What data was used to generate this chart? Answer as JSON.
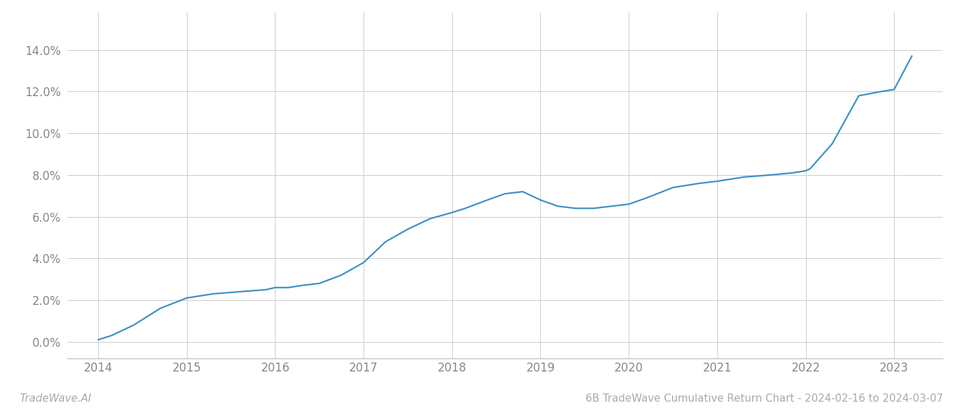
{
  "title": "6B TradeWave Cumulative Return Chart - 2024-02-16 to 2024-03-07",
  "watermark": "TradeWave.AI",
  "line_color": "#3d8fc4",
  "background_color": "#ffffff",
  "grid_color": "#cccccc",
  "x_values": [
    2014.0,
    2014.15,
    2014.4,
    2014.7,
    2015.0,
    2015.15,
    2015.3,
    2015.6,
    2015.9,
    2016.0,
    2016.15,
    2016.3,
    2016.5,
    2016.75,
    2017.0,
    2017.25,
    2017.5,
    2017.75,
    2018.0,
    2018.15,
    2018.4,
    2018.6,
    2018.8,
    2019.0,
    2019.2,
    2019.4,
    2019.6,
    2019.8,
    2020.0,
    2020.2,
    2020.5,
    2020.8,
    2021.0,
    2021.3,
    2021.6,
    2021.85,
    2022.0,
    2022.05,
    2022.3,
    2022.6,
    2022.85,
    2023.0,
    2023.2
  ],
  "y_values": [
    0.001,
    0.003,
    0.008,
    0.016,
    0.021,
    0.022,
    0.023,
    0.024,
    0.025,
    0.026,
    0.026,
    0.027,
    0.028,
    0.032,
    0.038,
    0.048,
    0.054,
    0.059,
    0.062,
    0.064,
    0.068,
    0.071,
    0.072,
    0.068,
    0.065,
    0.064,
    0.064,
    0.065,
    0.066,
    0.069,
    0.074,
    0.076,
    0.077,
    0.079,
    0.08,
    0.081,
    0.082,
    0.083,
    0.095,
    0.118,
    0.12,
    0.121,
    0.137
  ],
  "xlim": [
    2013.65,
    2023.55
  ],
  "ylim": [
    -0.008,
    0.158
  ],
  "yticks": [
    0.0,
    0.02,
    0.04,
    0.06,
    0.08,
    0.1,
    0.12,
    0.14
  ],
  "xticks": [
    2014,
    2015,
    2016,
    2017,
    2018,
    2019,
    2020,
    2021,
    2022,
    2023
  ],
  "line_width": 1.6,
  "tick_fontsize": 12,
  "footer_fontsize": 11
}
